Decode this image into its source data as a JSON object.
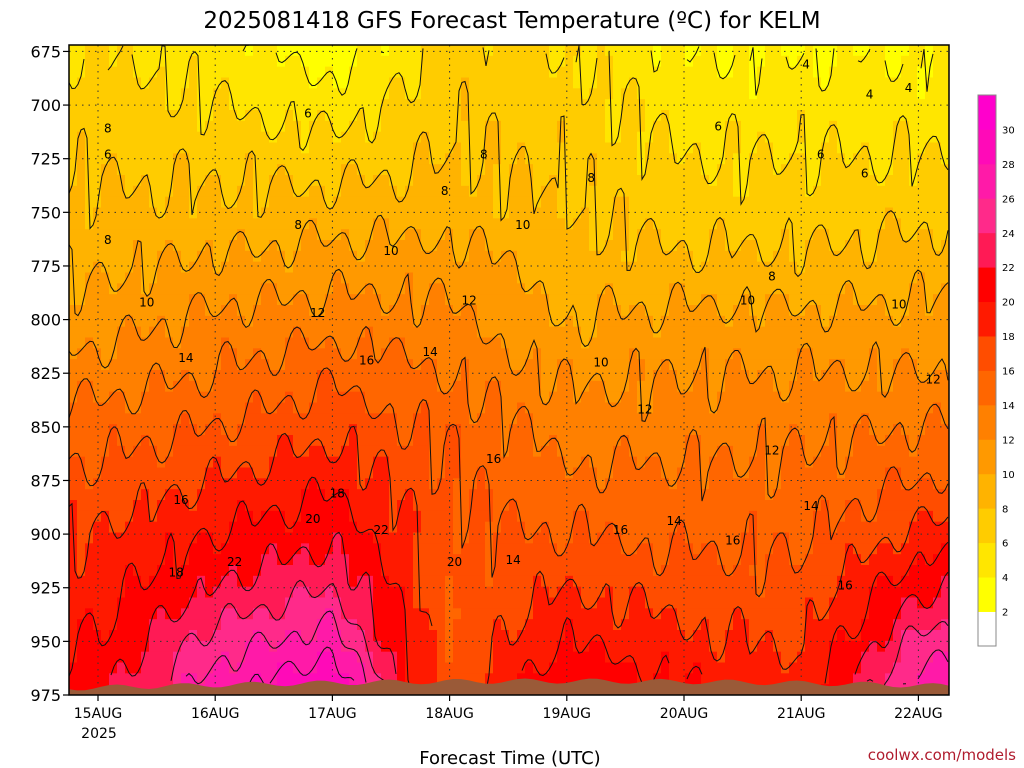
{
  "chart_data": {
    "type": "heatmap",
    "title": "2025081418 GFS Forecast Temperature (ºC) for KELM",
    "xlabel": "Forecast Time (UTC)",
    "ylabel": "",
    "source": "coolwx.com/models",
    "x_ticks": [
      "15AUG",
      "16AUG",
      "17AUG",
      "18AUG",
      "19AUG",
      "20AUG",
      "21AUG",
      "22AUG"
    ],
    "x_year": "2025",
    "y_ticks": [
      "675",
      "700",
      "725",
      "750",
      "775",
      "800",
      "825",
      "850",
      "875",
      "900",
      "925",
      "950",
      "975"
    ],
    "ylim": [
      975,
      672
    ],
    "grid": true,
    "colorbar": {
      "levels": [
        2,
        4,
        6,
        8,
        10,
        12,
        14,
        16,
        18,
        20,
        22,
        24,
        26,
        28,
        30
      ],
      "colors": [
        "#ffffff",
        "#ffff00",
        "#ffe600",
        "#ffcc00",
        "#ffb300",
        "#ff9900",
        "#ff8000",
        "#ff6600",
        "#ff4d00",
        "#ff1a00",
        "#ff0000",
        "#ff1a55",
        "#ff2a8a",
        "#ff1aa8",
        "#ff0ab8",
        "#ff00cc"
      ]
    },
    "ground_color": "#9a5a38",
    "time_steps": [
      0,
      24,
      48,
      72,
      96,
      120,
      144,
      168,
      186
    ],
    "profiles": [
      {
        "hour": 0,
        "pressure": [
          675,
          700,
          725,
          750,
          775,
          800,
          825,
          850,
          875,
          900,
          925,
          950,
          970
        ],
        "temp": [
          6,
          7,
          7.5,
          8.5,
          9.5,
          11,
          13,
          15,
          16.5,
          18,
          19,
          20,
          21
        ]
      },
      {
        "hour": 24,
        "pressure": [
          675,
          700,
          725,
          750,
          775,
          800,
          825,
          850,
          875,
          900,
          925,
          950,
          970
        ],
        "temp": [
          5,
          6,
          7.5,
          8.5,
          10.5,
          12.5,
          14,
          16,
          18,
          20,
          22,
          25,
          27
        ]
      },
      {
        "hour": 48,
        "pressure": [
          675,
          700,
          725,
          750,
          775,
          800,
          825,
          850,
          875,
          900,
          925,
          950,
          970
        ],
        "temp": [
          3,
          5,
          7,
          9,
          11,
          13,
          15.5,
          17.5,
          19.5,
          21.5,
          24,
          27,
          30
        ]
      },
      {
        "hour": 72,
        "pressure": [
          675,
          700,
          725,
          750,
          775,
          800,
          825,
          850,
          875,
          900,
          925,
          950,
          970
        ],
        "temp": [
          7,
          7.5,
          8,
          9,
          11,
          12.5,
          14,
          15.5,
          16,
          16.5,
          16,
          16,
          16
        ]
      },
      {
        "hour": 96,
        "pressure": [
          675,
          700,
          725,
          750,
          775,
          800,
          825,
          850,
          875,
          900,
          925,
          950,
          970
        ],
        "temp": [
          6,
          7,
          7.5,
          8,
          9,
          10,
          11.5,
          13,
          14.5,
          16,
          18,
          20,
          22
        ]
      },
      {
        "hour": 120,
        "pressure": [
          675,
          700,
          725,
          750,
          775,
          800,
          825,
          850,
          875,
          900,
          925,
          950,
          970
        ],
        "temp": [
          4,
          5,
          6,
          7,
          8.5,
          10.5,
          12,
          13,
          14.5,
          15.5,
          17,
          18.5,
          20
        ]
      },
      {
        "hour": 144,
        "pressure": [
          675,
          700,
          725,
          750,
          775,
          800,
          825,
          850,
          875,
          900,
          925,
          950,
          970
        ],
        "temp": [
          4,
          5,
          6,
          7,
          8.5,
          10.5,
          12,
          13.5,
          14.5,
          15.5,
          16.5,
          17.5,
          18.5
        ]
      },
      {
        "hour": 168,
        "pressure": [
          675,
          700,
          725,
          750,
          775,
          800,
          825,
          850,
          875,
          900,
          925,
          950,
          970
        ],
        "temp": [
          4,
          5,
          6,
          7.5,
          9,
          10.5,
          12,
          14,
          16,
          18.5,
          21.5,
          24.5,
          27
        ]
      },
      {
        "hour": 186,
        "pressure": [
          675,
          700,
          725,
          750,
          775,
          800,
          825,
          850,
          875,
          900,
          925,
          950,
          970
        ],
        "temp": [
          4,
          5,
          6.5,
          8,
          9.5,
          11,
          12.5,
          14.5,
          17,
          20,
          23,
          26,
          28
        ]
      }
    ],
    "contour_labels": [
      {
        "text": "4",
        "x": 145,
        "p": 681
      },
      {
        "text": "4",
        "x": 158,
        "p": 695
      },
      {
        "text": "4",
        "x": 166,
        "p": 692
      },
      {
        "text": "6",
        "x": 43,
        "p": 704
      },
      {
        "text": "6",
        "x": 127,
        "p": 710
      },
      {
        "text": "6",
        "x": 148,
        "p": 723
      },
      {
        "text": "6",
        "x": 178,
        "p": 743
      },
      {
        "text": "6",
        "x": 2,
        "p": 723
      },
      {
        "text": "6",
        "x": 157,
        "p": 732
      },
      {
        "text": "8",
        "x": 2,
        "p": 711
      },
      {
        "text": "8",
        "x": 2,
        "p": 763
      },
      {
        "text": "8",
        "x": 41,
        "p": 756
      },
      {
        "text": "8",
        "x": 71,
        "p": 740
      },
      {
        "text": "8",
        "x": 79,
        "p": 723
      },
      {
        "text": "8",
        "x": 101,
        "p": 734
      },
      {
        "text": "8",
        "x": 138,
        "p": 780
      },
      {
        "text": "8",
        "x": 175,
        "p": 756
      },
      {
        "text": "10",
        "x": 10,
        "p": 792
      },
      {
        "text": "10",
        "x": 60,
        "p": 768
      },
      {
        "text": "10",
        "x": 87,
        "p": 756
      },
      {
        "text": "10",
        "x": 103,
        "p": 820
      },
      {
        "text": "10",
        "x": 133,
        "p": 791
      },
      {
        "text": "10",
        "x": 164,
        "p": 793
      },
      {
        "text": "12",
        "x": 45,
        "p": 797
      },
      {
        "text": "12",
        "x": 76,
        "p": 791
      },
      {
        "text": "12",
        "x": 112,
        "p": 842
      },
      {
        "text": "12",
        "x": 138,
        "p": 861
      },
      {
        "text": "12",
        "x": 171,
        "p": 828
      },
      {
        "text": "14",
        "x": 18,
        "p": 818
      },
      {
        "text": "14",
        "x": 68,
        "p": 815
      },
      {
        "text": "14",
        "x": 85,
        "p": 912
      },
      {
        "text": "14",
        "x": 118,
        "p": 894
      },
      {
        "text": "14",
        "x": 146,
        "p": 887
      },
      {
        "text": "14",
        "x": 177,
        "p": 861
      },
      {
        "text": "16",
        "x": 17,
        "p": 884
      },
      {
        "text": "16",
        "x": 55,
        "p": 819
      },
      {
        "text": "16",
        "x": 81,
        "p": 865
      },
      {
        "text": "16",
        "x": 107,
        "p": 898
      },
      {
        "text": "16",
        "x": 130,
        "p": 903
      },
      {
        "text": "16",
        "x": 153,
        "p": 924
      },
      {
        "text": "16",
        "x": 181,
        "p": 879
      },
      {
        "text": "18",
        "x": 16,
        "p": 918
      },
      {
        "text": "18",
        "x": 49,
        "p": 881
      },
      {
        "text": "18",
        "x": 180,
        "p": 894
      },
      {
        "text": "20",
        "x": 44,
        "p": 893
      },
      {
        "text": "20",
        "x": 73,
        "p": 913
      },
      {
        "text": "20",
        "x": 184,
        "p": 890
      },
      {
        "text": "22",
        "x": 28,
        "p": 913
      },
      {
        "text": "22",
        "x": 58,
        "p": 898
      },
      {
        "text": "22",
        "x": 181,
        "p": 926
      }
    ]
  }
}
